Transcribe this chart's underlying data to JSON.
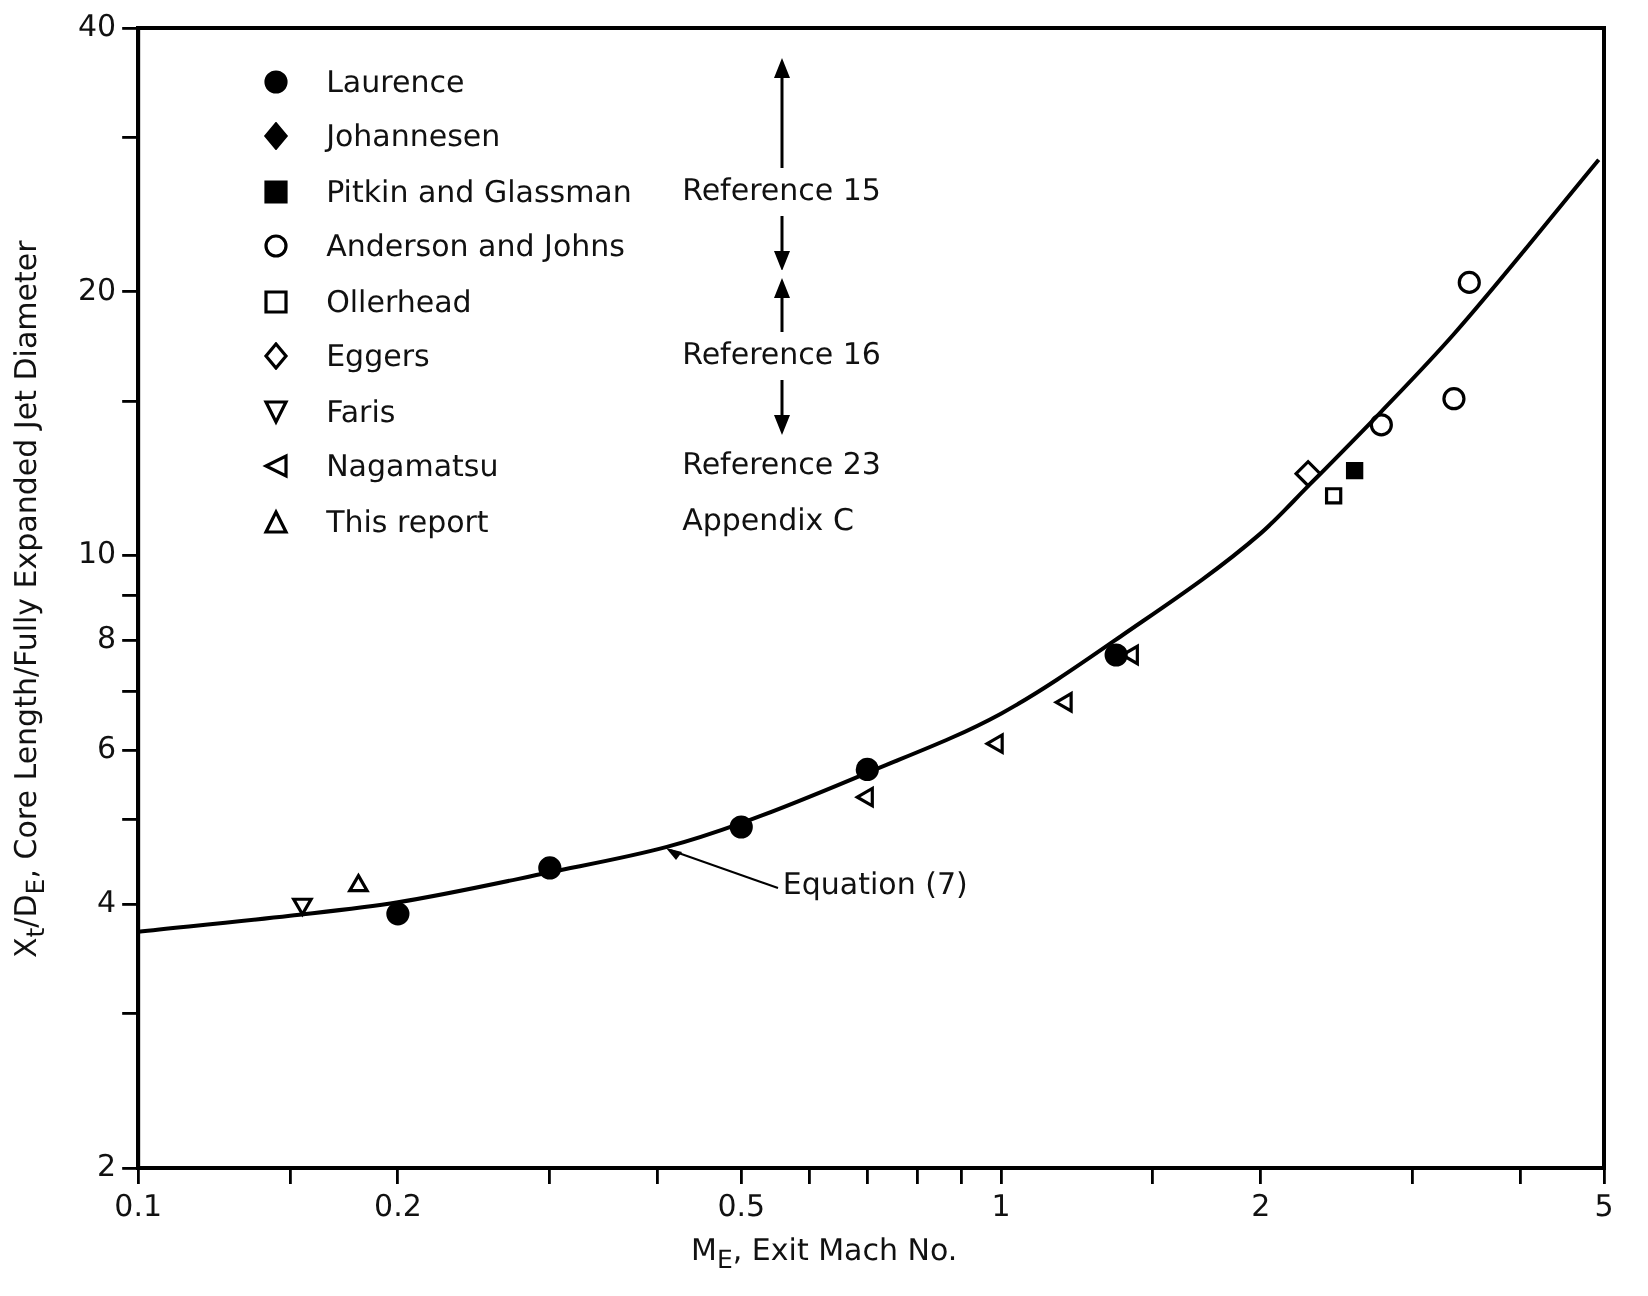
{
  "chart_data": {
    "type": "scatter",
    "xlabel": "M$_{E}$,  Exit Mach No.",
    "ylabel": "X$_{t}$/D$_{E}$, Core Length/Fully Expanded Jet Diameter",
    "log": "xy",
    "grid": false,
    "legend": "top left",
    "xlim": [
      0.1,
      5
    ],
    "xticks": [
      0.1,
      {
        "value": 0.15,
        "label": null
      },
      0.2,
      {
        "value": 0.3,
        "label": null
      },
      {
        "value": 0.4,
        "label": null
      },
      0.5,
      {
        "value": 0.6,
        "label": null
      },
      {
        "value": 0.7,
        "label": null
      },
      {
        "value": 0.8,
        "label": null
      },
      {
        "value": 0.9,
        "label": null
      },
      1,
      {
        "value": 1.5,
        "label": null
      },
      2,
      {
        "value": 3,
        "label": null
      },
      {
        "value": 4,
        "label": null
      },
      5
    ],
    "ylim": [
      2,
      40
    ],
    "yticks": [
      2,
      {
        "value": 3,
        "label": null
      },
      4,
      {
        "value": 5,
        "label": null
      },
      6,
      {
        "value": 7,
        "label": null
      },
      8,
      {
        "value": 9,
        "label": null
      },
      10,
      {
        "value": 15,
        "label": null
      },
      20,
      {
        "value": 30,
        "label": null
      },
      40
    ],
    "series": [
      {
        "name": "Laurence",
        "color": "#000000",
        "marker": "circle",
        "x": [
          0.2,
          0.3,
          0.5,
          0.7,
          1.36
        ],
        "values": [
          3.9,
          4.4,
          4.9,
          5.7,
          7.7
        ]
      },
      {
        "name": "Johannesen",
        "color": "#000000",
        "marker": "diamond"
      },
      {
        "name": "Pitkin and Glassman",
        "color": "#000000",
        "marker": "square",
        "x": [
          2.57
        ],
        "values": [
          12.5
        ]
      },
      {
        "name": "Anderson and Johns",
        "color": "#000000",
        "marker": "circle-open",
        "x": [
          2.76,
          3.35,
          3.49
        ],
        "values": [
          14.1,
          15.1,
          20.5
        ]
      },
      {
        "name": "Ollerhead",
        "color": "#000000",
        "marker": "square-open",
        "x": [
          2.43
        ],
        "values": [
          11.7
        ]
      },
      {
        "name": "Eggers",
        "color": "#000000",
        "marker": "diamond-open",
        "x": [
          2.27
        ],
        "values": [
          12.4
        ]
      },
      {
        "name": "Faris",
        "color": "#000000",
        "marker": "triangle-down-open",
        "x": [
          0.155
        ],
        "values": [
          4.0
        ]
      },
      {
        "name": "Nagamatsu",
        "color": "#000000",
        "marker": "triangle-left-open",
        "x": [
          0.7,
          0.99,
          1.19,
          1.42
        ],
        "values": [
          5.3,
          6.1,
          6.8,
          7.7
        ]
      },
      {
        "name": "This report",
        "color": "#000000",
        "marker": "triangle-open",
        "x": [
          0.18
        ],
        "values": [
          4.2
        ]
      },
      {
        "type": "line",
        "color": "#000000",
        "marker": "none",
        "x": [
          0.1,
          0.15,
          0.2,
          0.3,
          0.41,
          0.5,
          0.7,
          1.0,
          1.38,
          2.0,
          2.27,
          2.76,
          3.35,
          4.93
        ],
        "values": [
          3.72,
          3.88,
          4.02,
          4.35,
          4.65,
          4.95,
          5.65,
          6.6,
          8.1,
          10.6,
          12.0,
          14.6,
          17.9,
          28.3
        ]
      }
    ],
    "annotations": [
      "Reference 15",
      "Reference 16",
      "Reference 23",
      "Appendix C",
      {
        "text": "Equation (7)",
        "x": 0.41,
        "y": 4.67
      }
    ]
  }
}
